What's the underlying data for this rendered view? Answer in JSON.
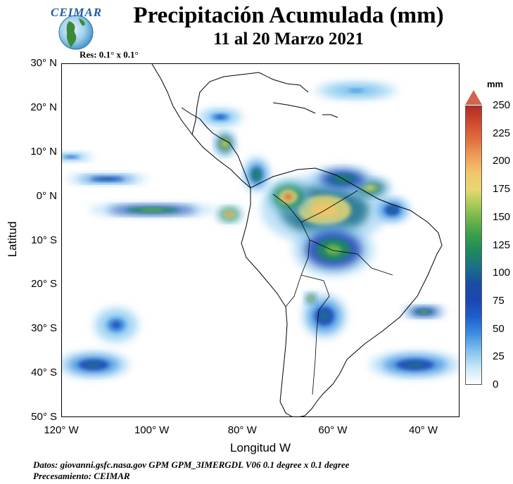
{
  "header": {
    "title": "Precipitación Acumulada (mm)",
    "subtitle": "11 al 20 Marzo 2021",
    "logo_text": "CEIMAR",
    "logo_icon": "globe-icon",
    "resolution": "Res: 0.1° x 0.1°"
  },
  "map": {
    "lon_range": [
      -120,
      -32
    ],
    "lat_range": [
      -50,
      30
    ],
    "grid": false,
    "ylabel": "Latitud",
    "xlabel": "Longitud W",
    "lat_ticks": [
      {
        "value": 30,
        "label": "30° N"
      },
      {
        "value": 20,
        "label": "20° N"
      },
      {
        "value": 10,
        "label": "10° N"
      },
      {
        "value": 0,
        "label": "0° N"
      },
      {
        "value": -10,
        "label": "10° S"
      },
      {
        "value": -20,
        "label": "20° S"
      },
      {
        "value": -30,
        "label": "30° S"
      },
      {
        "value": -40,
        "label": "40° S"
      },
      {
        "value": -50,
        "label": "50° S"
      }
    ],
    "lon_ticks": [
      {
        "value": -120,
        "label": "120° W"
      },
      {
        "value": -100,
        "label": "100° W"
      },
      {
        "value": -80,
        "label": "80° W"
      },
      {
        "value": -60,
        "label": "60° W"
      },
      {
        "value": -40,
        "label": "40° W"
      }
    ],
    "precip_regions": [
      {
        "lon": -62,
        "lat": -3,
        "rx": 14,
        "ry": 8,
        "mm": 220
      },
      {
        "lon": -70,
        "lat": 0,
        "rx": 5,
        "ry": 4,
        "mm": 230
      },
      {
        "lon": -52,
        "lat": 2,
        "rx": 5,
        "ry": 2.5,
        "mm": 200
      },
      {
        "lon": -60,
        "lat": -12,
        "rx": 9,
        "ry": 6,
        "mm": 160
      },
      {
        "lon": -58,
        "lat": 4,
        "rx": 7,
        "ry": 3,
        "mm": 140
      },
      {
        "lon": -84,
        "lat": 12,
        "rx": 2.5,
        "ry": 3,
        "mm": 200
      },
      {
        "lon": -77,
        "lat": 5,
        "rx": 3,
        "ry": 4,
        "mm": 130
      },
      {
        "lon": -100,
        "lat": -3,
        "rx": 14,
        "ry": 1.5,
        "mm": 170
      },
      {
        "lon": -110,
        "lat": 4,
        "rx": 9,
        "ry": 1.2,
        "mm": 110
      },
      {
        "lon": -118,
        "lat": 9,
        "rx": 5,
        "ry": 1,
        "mm": 80
      },
      {
        "lon": -83,
        "lat": -4,
        "rx": 3,
        "ry": 2,
        "mm": 240
      },
      {
        "lon": -62,
        "lat": -27,
        "rx": 5,
        "ry": 5,
        "mm": 110
      },
      {
        "lon": -65,
        "lat": -23,
        "rx": 1.5,
        "ry": 1.5,
        "mm": 210
      },
      {
        "lon": -42,
        "lat": -38,
        "rx": 10,
        "ry": 3,
        "mm": 120
      },
      {
        "lon": -40,
        "lat": -26,
        "rx": 5,
        "ry": 1.5,
        "mm": 150
      },
      {
        "lon": -113,
        "lat": -38,
        "rx": 8,
        "ry": 3,
        "mm": 110
      },
      {
        "lon": -108,
        "lat": -29,
        "rx": 5,
        "ry": 4,
        "mm": 90
      },
      {
        "lon": -55,
        "lat": 24,
        "rx": 9,
        "ry": 2,
        "mm": 60
      },
      {
        "lon": -85,
        "lat": 18,
        "rx": 5,
        "ry": 2,
        "mm": 90
      },
      {
        "lon": -47,
        "lat": -3,
        "rx": 4,
        "ry": 3,
        "mm": 120
      }
    ]
  },
  "colorbar": {
    "unit": "mm",
    "ticks": [
      0,
      25,
      50,
      75,
      100,
      125,
      150,
      175,
      200,
      225,
      250
    ],
    "max_arrow_color": "#d3644b"
  },
  "footer": {
    "source": "Datos: giovanni.gsfc.nasa.gov  GPM GPM_3IMERGDL V06  0.1 degree x 0.1 degree",
    "processing": "Precesamiento: CEIMAR"
  }
}
